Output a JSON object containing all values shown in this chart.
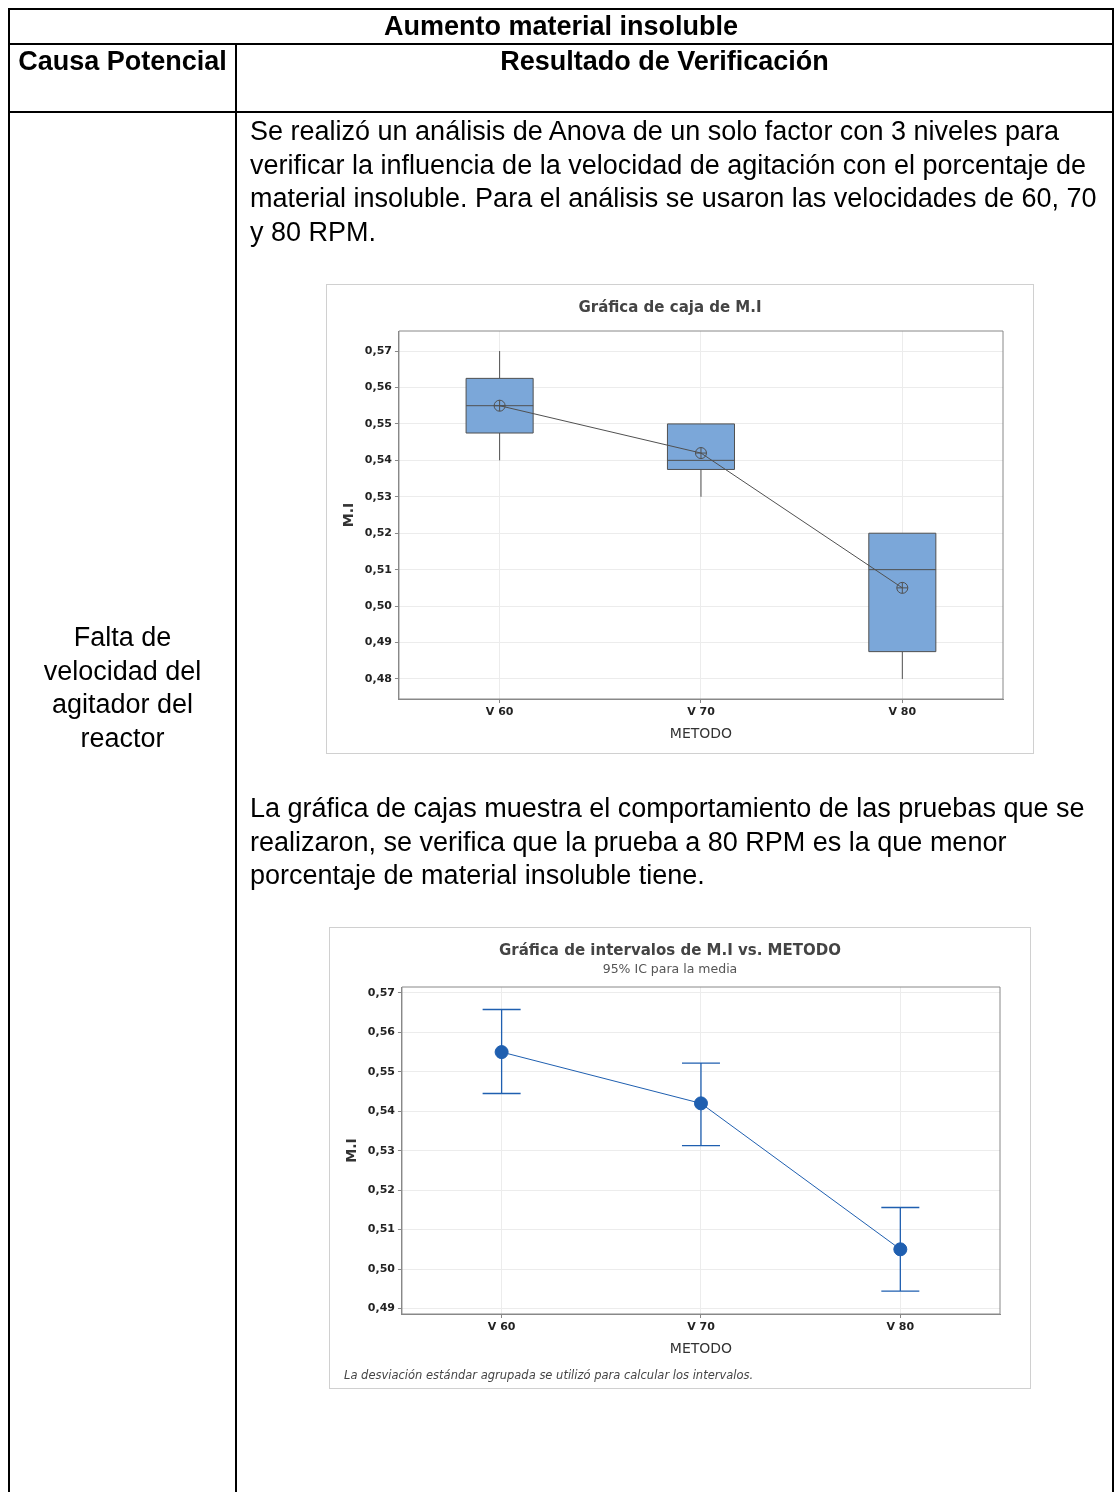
{
  "chart_data": [
    {
      "type": "other",
      "title": "Aumento material insoluble",
      "annotations": [
        "Causa Potencial",
        "Resultado de Verificación",
        "Falta de velocidad del agitador del reactor",
        "Se realizó un análisis de Anova de un solo factor con 3 niveles para verificar la influencia de la velocidad de agitación con el porcentaje de material insoluble. Para el análisis se usaron las velocidades de 60, 70 y 80 RPM.",
        "La gráfica de cajas muestra el comportamiento de las pruebas que se realizaron, se verifica que la prueba a 80 RPM es la que menor porcentaje de material insoluble tiene."
      ]
    },
    {
      "type": "box",
      "title": "Gráfica de caja de M.I",
      "xlabel": "METODO",
      "ylabel": "M.I",
      "categories": [
        "V 60",
        "V 70",
        "V 80"
      ],
      "color": "#7ba7d9",
      "boxes": [
        {
          "low": 0.54,
          "q1": 0.5475,
          "median": 0.555,
          "q3": 0.5625,
          "high": 0.57,
          "mean": 0.555
        },
        {
          "low": 0.53,
          "q1": 0.5375,
          "median": 0.54,
          "q3": 0.55,
          "high": 0.55,
          "mean": 0.542
        },
        {
          "low": 0.48,
          "q1": 0.4875,
          "median": 0.51,
          "q3": 0.52,
          "high": 0.52,
          "mean": 0.505
        }
      ],
      "series": [
        {
          "type": "line",
          "color": "#505050",
          "values": [
            0.555,
            0.542,
            0.505
          ]
        }
      ],
      "ylim": [
        0.4745,
        0.5755
      ],
      "yticks": [
        {
          "value": 0.48,
          "label": "0,48"
        },
        {
          "value": 0.49,
          "label": "0,49"
        },
        {
          "value": 0.5,
          "label": "0,50"
        },
        {
          "value": 0.51,
          "label": "0,51"
        },
        {
          "value": 0.52,
          "label": "0,52"
        },
        {
          "value": 0.53,
          "label": "0,53"
        },
        {
          "value": 0.54,
          "label": "0,54"
        },
        {
          "value": 0.55,
          "label": "0,55"
        },
        {
          "value": 0.56,
          "label": "0,56"
        },
        {
          "value": 0.57,
          "label": "0,57"
        }
      ],
      "grid": true
    },
    {
      "type": "line",
      "title": "Gráfica de intervalos de M.I vs. METODO",
      "subtitle": "95% IC para la media",
      "xlabel": "METODO",
      "ylabel": "M.I",
      "categories": [
        "V 60",
        "V 70",
        "V 80"
      ],
      "series": [
        {
          "color": "#1f5fb0",
          "values": [
            0.555,
            0.542,
            0.505
          ],
          "errors": [
            [
              0.5445,
              0.5658
            ],
            [
              0.5313,
              0.5522
            ],
            [
              0.4944,
              0.5156
            ]
          ]
        }
      ],
      "ylim": [
        0.4886,
        0.5715
      ],
      "yticks": [
        {
          "value": 0.49,
          "label": "0,49"
        },
        {
          "value": 0.5,
          "label": "0,50"
        },
        {
          "value": 0.51,
          "label": "0,51"
        },
        {
          "value": 0.52,
          "label": "0,52"
        },
        {
          "value": 0.53,
          "label": "0,53"
        },
        {
          "value": 0.54,
          "label": "0,54"
        },
        {
          "value": 0.55,
          "label": "0,55"
        },
        {
          "value": 0.56,
          "label": "0,56"
        },
        {
          "value": 0.57,
          "label": "0,57"
        }
      ],
      "grid": true,
      "marker": "circle",
      "annotations": [
        "La desviación estándar agrupada se utilizó para calcular los intervalos."
      ]
    }
  ]
}
